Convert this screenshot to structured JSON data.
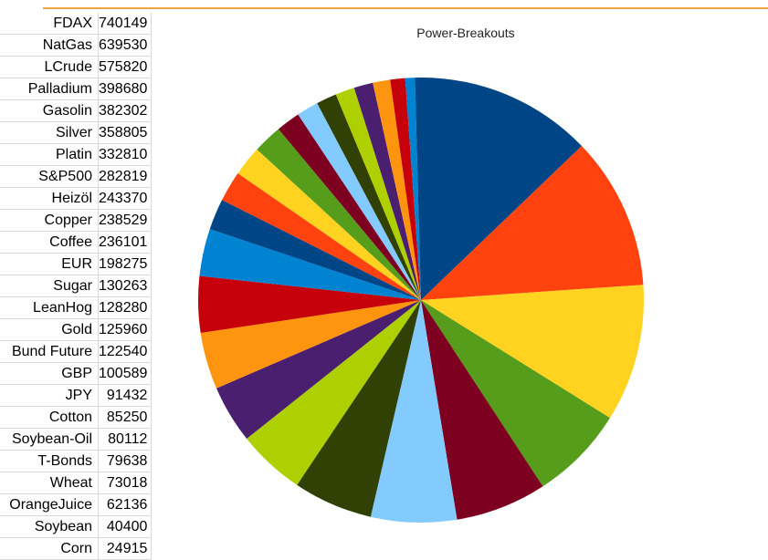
{
  "chart_data": {
    "type": "pie",
    "title": "Power-Breakouts",
    "categories": [
      "FDAX",
      "NatGas",
      "LCrude",
      "Palladium",
      "Gasolin",
      "Silver",
      "Platin",
      "S&P500",
      "Heizöl",
      "Copper",
      "Coffee",
      "EUR",
      "Sugar",
      "LeanHog",
      "Gold",
      "Bund Future",
      "GBP",
      "JPY",
      "Cotton",
      "Soybean-Oil",
      "T-Bonds",
      "Wheat",
      "OrangeJuice",
      "Soybean",
      "Corn"
    ],
    "values": [
      740149,
      639530,
      575820,
      398680,
      382302,
      358805,
      332810,
      282819,
      243370,
      238529,
      236101,
      198275,
      130263,
      128280,
      125960,
      122540,
      100589,
      91432,
      85250,
      80112,
      79638,
      73018,
      62136,
      40400,
      24915
    ],
    "colors": [
      "#004586",
      "#ff420e",
      "#ffd320",
      "#579d1c",
      "#7e0021",
      "#83caff",
      "#314004",
      "#aecf00",
      "#4b1f6f",
      "#ff950e",
      "#c5000b",
      "#0084d1",
      "#004586",
      "#ff420e",
      "#ffd320",
      "#579d1c",
      "#7e0021",
      "#83caff",
      "#314004",
      "#aecf00",
      "#4b1f6f",
      "#ff950e",
      "#c5000b",
      "#0084d1",
      "#004586"
    ],
    "legend": "none"
  }
}
